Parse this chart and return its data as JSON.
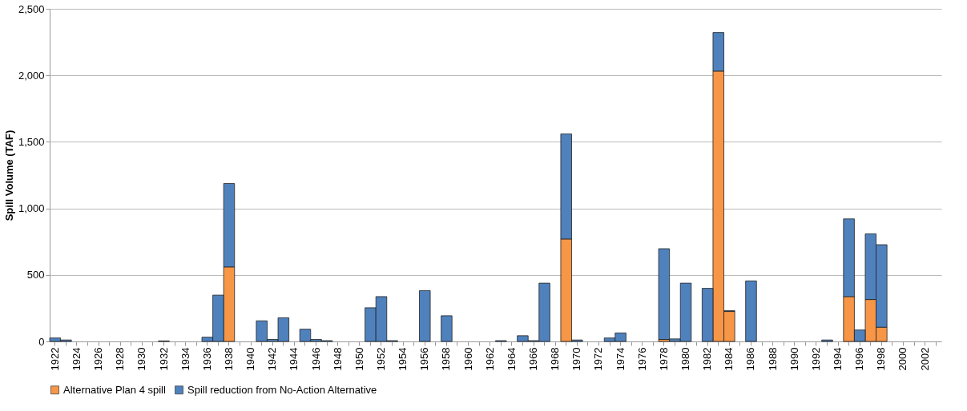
{
  "chart_data": {
    "type": "bar",
    "stacked": true,
    "ylabel": "Spill Volume (TAF)",
    "categories": [
      "1922",
      null,
      "1924",
      null,
      "1926",
      null,
      "1928",
      null,
      "1930",
      null,
      "1932",
      null,
      "1934",
      null,
      "1936",
      null,
      "1938",
      null,
      "1940",
      null,
      "1942",
      null,
      "1944",
      null,
      "1946",
      null,
      "1948",
      null,
      "1950",
      null,
      "1952",
      null,
      "1954",
      null,
      "1956",
      null,
      "1958",
      null,
      "1960",
      null,
      "1962",
      null,
      "1964",
      null,
      "1966",
      null,
      "1968",
      null,
      "1970",
      null,
      "1972",
      null,
      "1974",
      null,
      "1976",
      null,
      "1978",
      null,
      "1980",
      null,
      "1982",
      null,
      "1984",
      null,
      "1986",
      null,
      "1988",
      null,
      "1990",
      null,
      "1992",
      null,
      "1994",
      null,
      "1996",
      null,
      "1998",
      null,
      "2000",
      null,
      "2002",
      null
    ],
    "series": [
      {
        "name": "Alternative Plan 4 spill",
        "color": "#f79646",
        "values": [
          null,
          null,
          null,
          null,
          null,
          null,
          null,
          null,
          null,
          null,
          null,
          null,
          null,
          null,
          null,
          null,
          560,
          null,
          null,
          null,
          null,
          null,
          null,
          null,
          null,
          null,
          null,
          null,
          null,
          null,
          null,
          null,
          null,
          null,
          null,
          null,
          null,
          null,
          null,
          null,
          null,
          null,
          null,
          null,
          null,
          null,
          null,
          770,
          null,
          null,
          null,
          null,
          null,
          null,
          null,
          null,
          15,
          null,
          null,
          null,
          null,
          2032,
          225,
          null,
          null,
          null,
          null,
          null,
          null,
          null,
          null,
          null,
          null,
          337,
          null,
          315,
          107,
          null,
          null,
          null,
          null,
          null
        ]
      },
      {
        "name": "Spill reduction from No-Action Alternative",
        "color": "#4f81bd",
        "values": [
          26,
          11,
          null,
          null,
          null,
          null,
          null,
          null,
          null,
          null,
          4,
          null,
          null,
          null,
          32,
          348,
          627,
          null,
          null,
          155,
          15,
          178,
          null,
          92,
          15,
          6,
          null,
          null,
          null,
          253,
          337,
          6,
          null,
          null,
          382,
          null,
          193,
          null,
          null,
          null,
          null,
          6,
          null,
          43,
          6,
          438,
          null,
          790,
          11,
          null,
          null,
          26,
          64,
          null,
          null,
          null,
          682,
          19,
          438,
          null,
          399,
          290,
          7,
          null,
          455,
          null,
          null,
          null,
          null,
          null,
          null,
          11,
          null,
          584,
          86,
          494,
          620,
          null,
          null,
          null,
          null,
          null
        ]
      }
    ],
    "ylim": [
      0,
      2500
    ],
    "yticks": [
      0,
      {
        "value": 500,
        "label": "500"
      },
      {
        "value": 1000,
        "label": "1,000"
      },
      {
        "value": 1500,
        "label": "1,500"
      },
      {
        "value": 2000,
        "label": "2,000"
      },
      {
        "value": 2500,
        "label": "2,500"
      }
    ],
    "grid": "y",
    "legend": "bottom"
  }
}
